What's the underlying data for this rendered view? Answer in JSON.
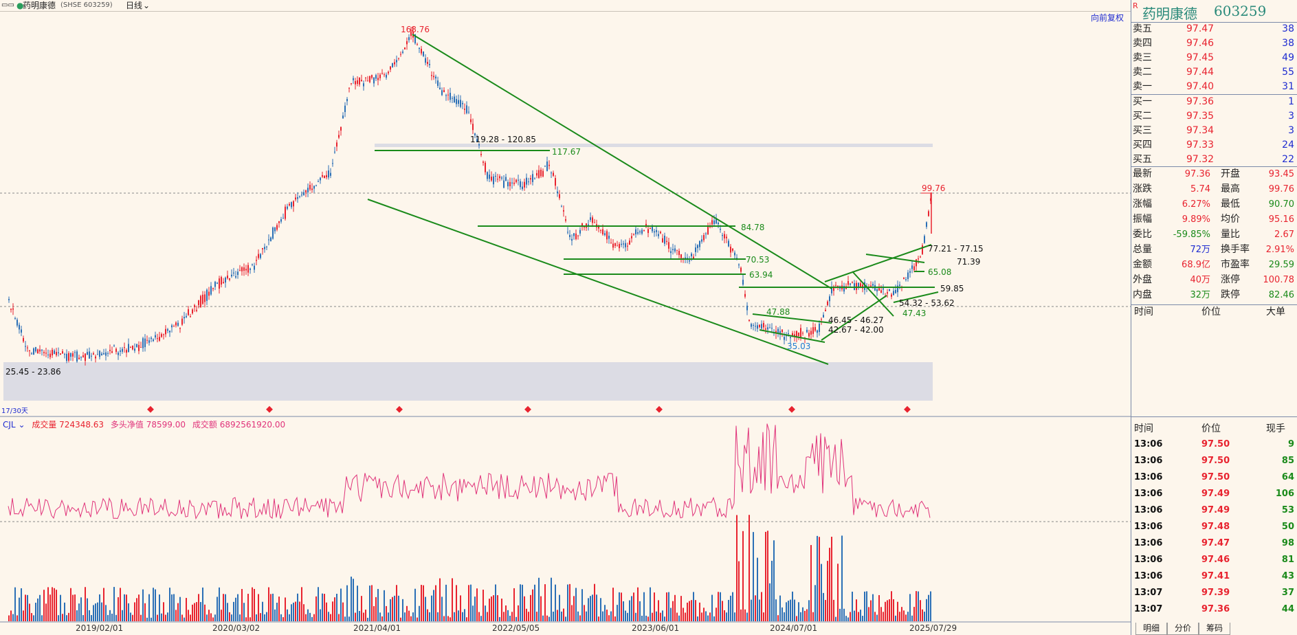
{
  "topbar": {
    "stock_name": "药明康德",
    "code_tag": "(SHSE 603259)",
    "period": "日线",
    "restore_btn": "向前复权"
  },
  "chart_labels": {
    "high": "168.76",
    "low_last": "99.76",
    "r1": "119.28 - 120.85",
    "r2": "117.67",
    "r3": "84.78",
    "r4": "70.53",
    "r5": "63.94",
    "r6": "47.88",
    "r7": "35.03",
    "r8": "46.45 - 46.27",
    "r9": "42.67 - 42.00",
    "r10": "54.32 - 53.62",
    "r11": "47.43",
    "r12": "77.21 - 77.15",
    "r13": "71.39",
    "r14": "65.08",
    "r15": "59.85",
    "bottom1": "25.45 - 23.86",
    "bottom2": "17/30天"
  },
  "indicator": {
    "name": "CJL",
    "vol_label": "成交量",
    "vol_value": "724348.63",
    "net_label": "多头净值",
    "net_value": "78599.00",
    "amount_label": "成交额",
    "amount_value": "6892561920.00"
  },
  "xaxis": [
    "2019/02/01",
    "2020/03/02",
    "2021/04/01",
    "2022/05/05",
    "2023/06/01",
    "2024/07/01",
    "2025/07/29"
  ],
  "header": {
    "r_mark": "R",
    "name": "药明康德",
    "code": "603259"
  },
  "asks": [
    {
      "label": "卖五",
      "price": "97.47",
      "vol": "38"
    },
    {
      "label": "卖四",
      "price": "97.46",
      "vol": "38"
    },
    {
      "label": "卖三",
      "price": "97.45",
      "vol": "49"
    },
    {
      "label": "卖二",
      "price": "97.44",
      "vol": "55"
    },
    {
      "label": "卖一",
      "price": "97.40",
      "vol": "31"
    }
  ],
  "bids": [
    {
      "label": "买一",
      "price": "97.36",
      "vol": "1"
    },
    {
      "label": "买二",
      "price": "97.35",
      "vol": "3"
    },
    {
      "label": "买三",
      "price": "97.34",
      "vol": "3"
    },
    {
      "label": "买四",
      "price": "97.33",
      "vol": "24"
    },
    {
      "label": "买五",
      "price": "97.32",
      "vol": "22"
    }
  ],
  "stats": [
    {
      "l1": "最新",
      "v1": "97.36",
      "c1": "red",
      "l2": "开盘",
      "v2": "93.45",
      "c2": "red"
    },
    {
      "l1": "涨跌",
      "v1": "5.74",
      "c1": "red",
      "l2": "最高",
      "v2": "99.76",
      "c2": "red"
    },
    {
      "l1": "涨幅",
      "v1": "6.27%",
      "c1": "red",
      "l2": "最低",
      "v2": "90.70",
      "c2": "green"
    },
    {
      "l1": "振幅",
      "v1": "9.89%",
      "c1": "red",
      "l2": "均价",
      "v2": "95.16",
      "c2": "red"
    },
    {
      "l1": "委比",
      "v1": "-59.85%",
      "c1": "green",
      "l2": "量比",
      "v2": "2.67",
      "c2": "red"
    },
    {
      "l1": "总量",
      "v1": "72万",
      "c1": "blue",
      "l2": "换手率",
      "v2": "2.91%",
      "c2": "red"
    },
    {
      "l1": "金额",
      "v1": "68.9亿",
      "c1": "red",
      "l2": "市盈率",
      "v2": "29.59",
      "c2": "green"
    },
    {
      "l1": "外盘",
      "v1": "40万",
      "c1": "red",
      "l2": "涨停",
      "v2": "100.78",
      "c2": "red"
    },
    {
      "l1": "内盘",
      "v1": "32万",
      "c1": "green",
      "l2": "跌停",
      "v2": "82.46",
      "c2": "green"
    }
  ],
  "bigorder_head": {
    "time": "时间",
    "price": "价位",
    "big": "大单"
  },
  "ticks_head": {
    "time": "时间",
    "price": "价位",
    "vol": "现手"
  },
  "ticks": [
    {
      "time": "13:06",
      "price": "97.50",
      "vol": "9"
    },
    {
      "time": "13:06",
      "price": "97.50",
      "vol": "85"
    },
    {
      "time": "13:06",
      "price": "97.50",
      "vol": "64"
    },
    {
      "time": "13:06",
      "price": "97.49",
      "vol": "106"
    },
    {
      "time": "13:06",
      "price": "97.49",
      "vol": "53"
    },
    {
      "time": "13:06",
      "price": "97.48",
      "vol": "50"
    },
    {
      "time": "13:06",
      "price": "97.47",
      "vol": "98"
    },
    {
      "time": "13:06",
      "price": "97.46",
      "vol": "81"
    },
    {
      "time": "13:06",
      "price": "97.41",
      "vol": "43"
    },
    {
      "time": "13:07",
      "price": "97.39",
      "vol": "37"
    },
    {
      "time": "13:07",
      "price": "97.36",
      "vol": "44"
    }
  ],
  "tabs": [
    "明细",
    "分价",
    "筹码"
  ],
  "colors": {
    "up": "#e8232f",
    "down": "#1a8a1a",
    "line": "#1a8a1a",
    "vol_blue": "#2a6fb6",
    "net": "#e0337a"
  }
}
